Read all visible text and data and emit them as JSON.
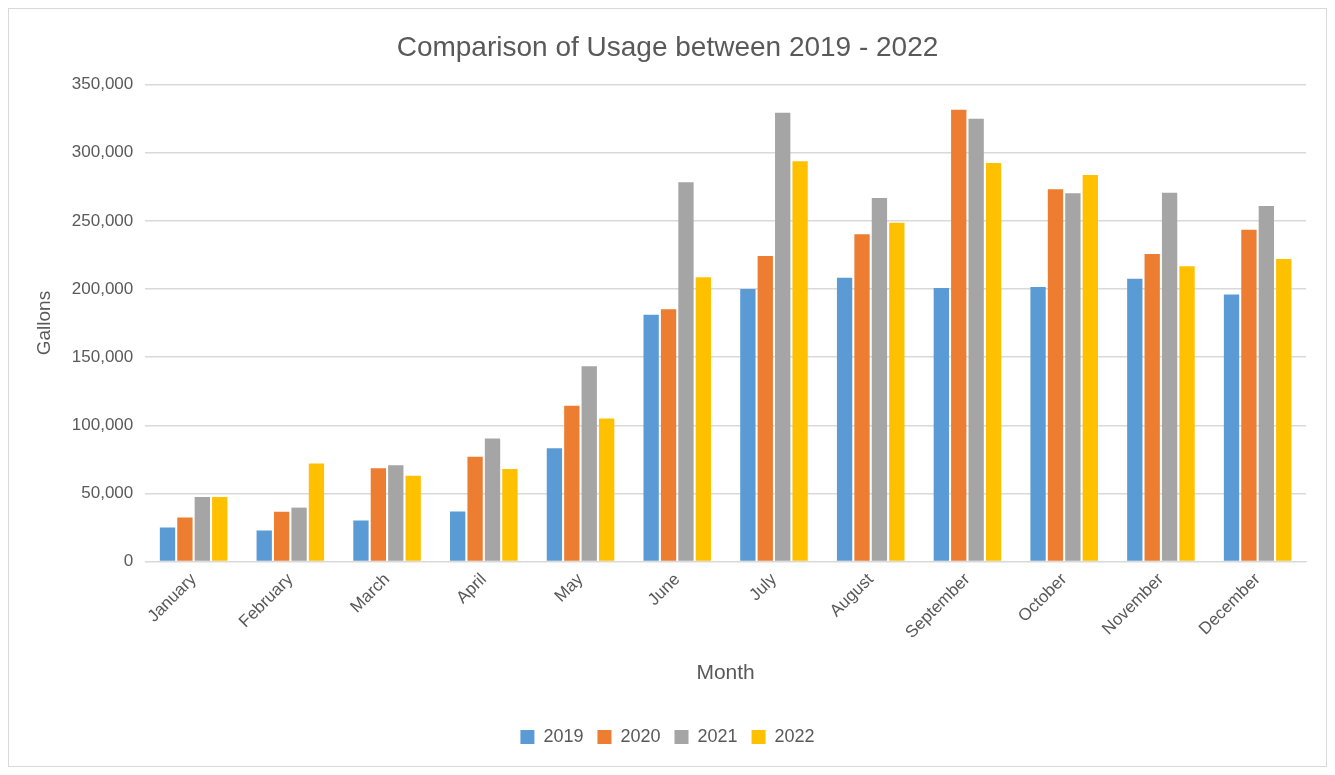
{
  "chart_data": {
    "type": "bar",
    "title": "Comparison of Usage between 2019 - 2022",
    "xlabel": "Month",
    "ylabel": "Gallons",
    "categories": [
      "January",
      "February",
      "March",
      "April",
      "May",
      "June",
      "July",
      "August",
      "September",
      "October",
      "November",
      "December"
    ],
    "series": [
      {
        "name": "2019",
        "color": "#5b9bd5",
        "values": [
          25000,
          22800,
          30200,
          36800,
          83200,
          181200,
          200000,
          208300,
          200700,
          201400,
          207600,
          196000
        ]
      },
      {
        "name": "2020",
        "color": "#ed7d31",
        "values": [
          32400,
          36500,
          68400,
          76900,
          114300,
          185100,
          224300,
          240200,
          331500,
          273200,
          225700,
          243500
        ]
      },
      {
        "name": "2021",
        "color": "#a5a5a5",
        "values": [
          47300,
          39600,
          70600,
          90400,
          143400,
          278300,
          329300,
          266700,
          325000,
          270300,
          270700,
          260900
        ]
      },
      {
        "name": "2022",
        "color": "#ffc000",
        "values": [
          47300,
          72000,
          62900,
          67900,
          104900,
          208700,
          293800,
          248600,
          292400,
          283700,
          216700,
          222100
        ]
      }
    ],
    "ylim": [
      0,
      350000
    ],
    "yticks": [
      0,
      {
        "value": 50000,
        "label": "50,000"
      },
      {
        "value": 100000,
        "label": "100,000"
      },
      {
        "value": 150000,
        "label": "150,000"
      },
      {
        "value": 200000,
        "label": "200,000"
      },
      {
        "value": 250000,
        "label": "250,000"
      },
      {
        "value": 300000,
        "label": "300,000"
      },
      {
        "value": 350000,
        "label": "350,000"
      }
    ],
    "grid": "y",
    "legend": "bottom"
  }
}
